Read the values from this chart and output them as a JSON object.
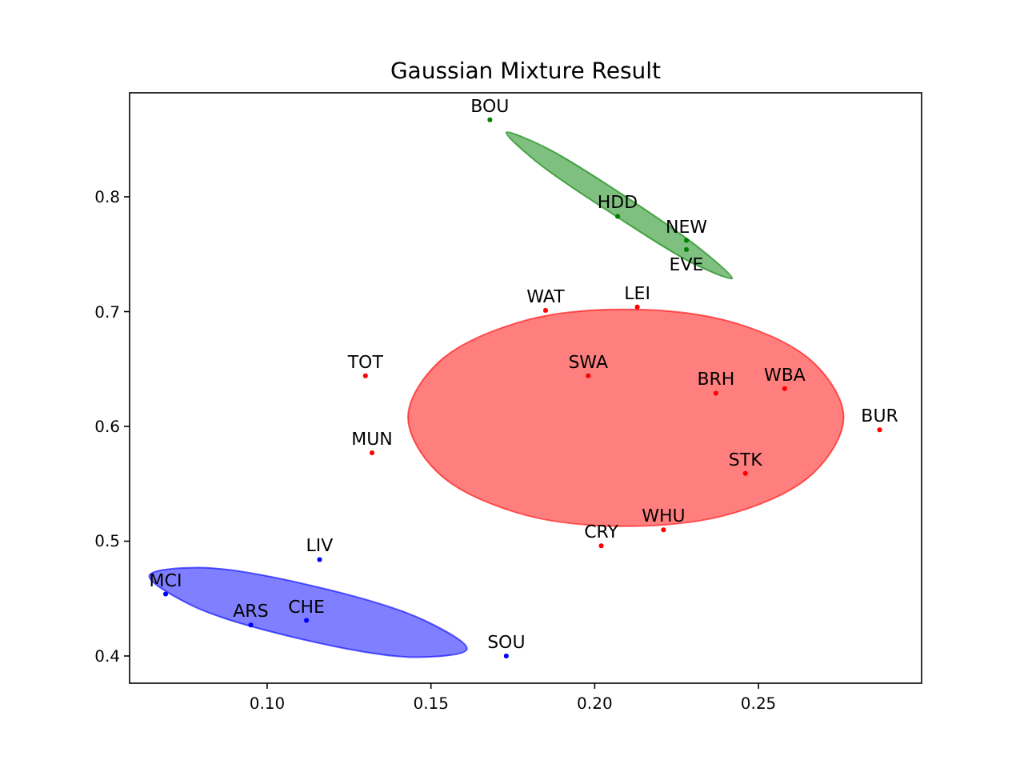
{
  "chart_data": {
    "type": "scatter",
    "title": "Gaussian Mixture Result",
    "xlim": [
      0.058,
      0.2998
    ],
    "ylim": [
      0.3763,
      0.8906
    ],
    "xticks": [
      {
        "value": 0.1,
        "label": "0.10"
      },
      {
        "value": 0.15,
        "label": "0.15"
      },
      {
        "value": 0.2,
        "label": "0.20"
      },
      {
        "value": 0.25,
        "label": "0.25"
      }
    ],
    "yticks": [
      0.4,
      0.5,
      0.6,
      0.7,
      0.8
    ],
    "marker": "circle",
    "series": [
      {
        "type": "area",
        "marker": "none",
        "color": "#ff0000",
        "x": [
          0.276,
          0.267,
          0.243,
          0.209,
          0.176,
          0.152,
          0.143,
          0.152,
          0.176,
          0.209,
          0.243,
          0.267
        ],
        "values": [
          0.608,
          0.655,
          0.69,
          0.702,
          0.69,
          0.655,
          0.608,
          0.56,
          0.525,
          0.513,
          0.525,
          0.56
        ]
      },
      {
        "type": "area",
        "marker": "none",
        "color": "#008000",
        "x": [
          0.242,
          0.23,
          0.206,
          0.182,
          0.173,
          0.185,
          0.209,
          0.233
        ],
        "values": [
          0.729,
          0.742,
          0.784,
          0.831,
          0.856,
          0.843,
          0.801,
          0.753
        ]
      },
      {
        "type": "area",
        "marker": "none",
        "color": "#0000ff",
        "x": [
          0.161,
          0.145,
          0.11,
          0.077,
          0.064,
          0.079,
          0.114,
          0.148
        ],
        "values": [
          0.406,
          0.399,
          0.415,
          0.444,
          0.47,
          0.477,
          0.461,
          0.431
        ]
      },
      {
        "color": "#008000",
        "x": [
          0.168,
          0.207,
          0.228,
          0.228
        ],
        "values": [
          0.867,
          0.783,
          0.762,
          0.754
        ]
      },
      {
        "color": "#ff0000",
        "x": [
          0.185,
          0.213,
          0.13,
          0.198,
          0.237,
          0.258,
          0.287,
          0.132,
          0.246,
          0.202,
          0.221
        ],
        "values": [
          0.701,
          0.704,
          0.644,
          0.644,
          0.629,
          0.633,
          0.597,
          0.577,
          0.559,
          0.496,
          0.51
        ]
      },
      {
        "color": "#0000ff",
        "x": [
          0.116,
          0.069,
          0.095,
          0.112,
          0.173
        ],
        "values": [
          0.484,
          0.454,
          0.427,
          0.431,
          0.4
        ]
      }
    ],
    "annotations": [
      {
        "text": "BOU",
        "x": 0.168,
        "y": 0.867
      },
      {
        "text": "HDD",
        "x": 0.207,
        "y": 0.783
      },
      {
        "text": "NEW",
        "x": 0.228,
        "y": 0.762
      },
      {
        "text": "EVE",
        "x": 0.228,
        "y": 0.754
      },
      {
        "text": "WAT",
        "x": 0.185,
        "y": 0.701
      },
      {
        "text": "LEI",
        "x": 0.213,
        "y": 0.704
      },
      {
        "text": "TOT",
        "x": 0.13,
        "y": 0.644
      },
      {
        "text": "SWA",
        "x": 0.198,
        "y": 0.644
      },
      {
        "text": "BRH",
        "x": 0.237,
        "y": 0.629
      },
      {
        "text": "WBA",
        "x": 0.258,
        "y": 0.633
      },
      {
        "text": "BUR",
        "x": 0.287,
        "y": 0.597
      },
      {
        "text": "MUN",
        "x": 0.132,
        "y": 0.577
      },
      {
        "text": "STK",
        "x": 0.246,
        "y": 0.559
      },
      {
        "text": "CRY",
        "x": 0.202,
        "y": 0.496
      },
      {
        "text": "WHU",
        "x": 0.221,
        "y": 0.51
      },
      {
        "text": "LIV",
        "x": 0.116,
        "y": 0.484
      },
      {
        "text": "MCI",
        "x": 0.069,
        "y": 0.454
      },
      {
        "text": "ARS",
        "x": 0.095,
        "y": 0.427
      },
      {
        "text": "CHE",
        "x": 0.112,
        "y": 0.431
      },
      {
        "text": "SOU",
        "x": 0.173,
        "y": 0.4
      }
    ]
  }
}
